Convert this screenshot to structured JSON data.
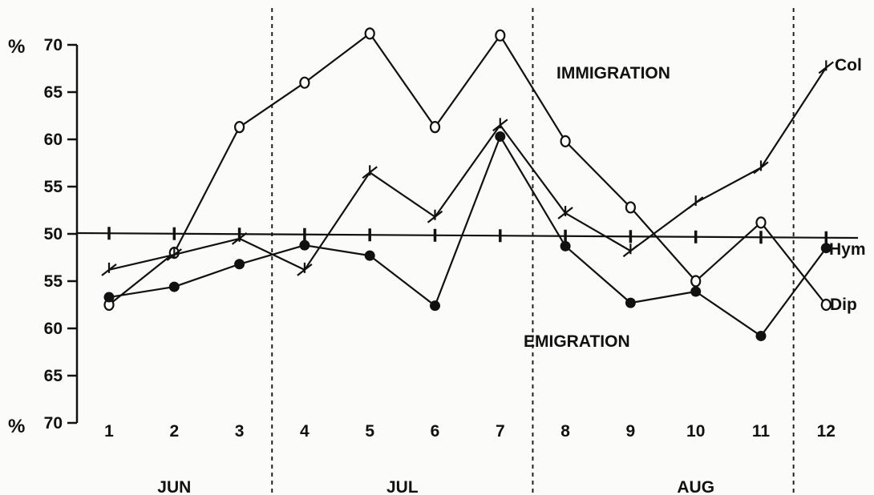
{
  "chart_data": {
    "type": "line",
    "y_unit": "%",
    "y_ticks_upper": [
      "70",
      "65",
      "60",
      "55",
      "50"
    ],
    "y_ticks_lower": [
      "55",
      "60",
      "65",
      "70"
    ],
    "y_range": [
      -20,
      20
    ],
    "x": [
      1,
      2,
      3,
      4,
      5,
      6,
      7,
      8,
      9,
      10,
      11,
      12
    ],
    "x_tick_labels": [
      "1",
      "2",
      "3",
      "4",
      "5",
      "6",
      "7",
      "8",
      "9",
      "10",
      "11",
      "12"
    ],
    "months": [
      {
        "label": "JUN",
        "from": 1,
        "to": 3
      },
      {
        "label": "JUL",
        "from": 4,
        "to": 7
      },
      {
        "label": "AUG",
        "from": 8,
        "to": 12
      }
    ],
    "annotations": {
      "above": "IMMIGRATION",
      "below": "EMIGRATION"
    },
    "reference_line": 0,
    "grid": false,
    "series": [
      {
        "name": "Dip",
        "marker": "open-circle",
        "values": [
          -7.5,
          -2,
          11.3,
          16,
          21.2,
          11.3,
          21,
          9.8,
          2.8,
          -5,
          1.2,
          -7.5
        ]
      },
      {
        "name": "Col",
        "marker": "cross",
        "values": [
          -3.8,
          -2.2,
          -0.5,
          -3.8,
          6.5,
          1.8,
          11.5,
          2.2,
          -1.8,
          3.3,
          7,
          17.6
        ]
      },
      {
        "name": "Hym",
        "marker": "filled-circle",
        "values": [
          -6.7,
          -5.6,
          -3.2,
          -1.2,
          -2.3,
          -7.6,
          10.3,
          -1.3,
          -7.3,
          -6.1,
          -10.8,
          -1.5
        ]
      }
    ],
    "series_labels": [
      "Col",
      "Hym",
      "Dip"
    ]
  }
}
